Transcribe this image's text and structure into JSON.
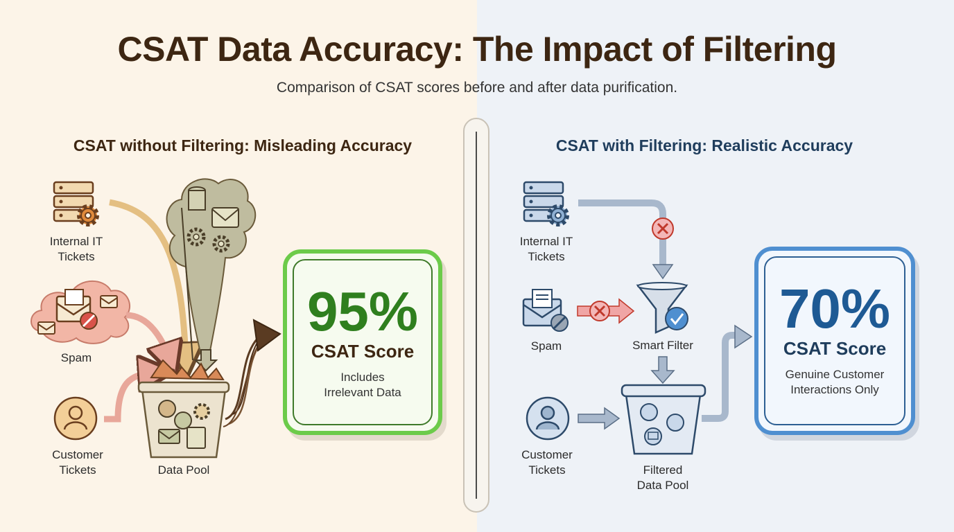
{
  "header": {
    "title": "CSAT Data Accuracy: The Impact of Filtering",
    "subtitle": "Comparison of CSAT scores before and after data purification."
  },
  "left": {
    "section_title": "CSAT without Filtering: Misleading Accuracy",
    "sources": {
      "internal_it": [
        "Internal IT",
        "Tickets"
      ],
      "spam": "Spam",
      "customer": [
        "Customer",
        "Tickets"
      ]
    },
    "pool_label": "Data Pool",
    "result": {
      "percent": "95%",
      "score_label": "CSAT Score",
      "note": [
        "Includes",
        "Irrelevant Data"
      ]
    }
  },
  "right": {
    "section_title": "CSAT with Filtering: Realistic Accuracy",
    "sources": {
      "internal_it": [
        "Internal IT",
        "Tickets"
      ],
      "spam": "Spam",
      "customer": [
        "Customer",
        "Tickets"
      ]
    },
    "filter_label": "Smart Filter",
    "pool_label": [
      "Filtered",
      "Data Pool"
    ],
    "result": {
      "percent": "70%",
      "score_label": "CSAT Score",
      "note": [
        "Genuine Customer",
        "Interactions Only"
      ]
    }
  },
  "colors": {
    "left_bg": "#fcf4e8",
    "right_bg": "#eef2f7",
    "left_accent": "#6ccb4a",
    "right_accent": "#4f8fd0"
  }
}
